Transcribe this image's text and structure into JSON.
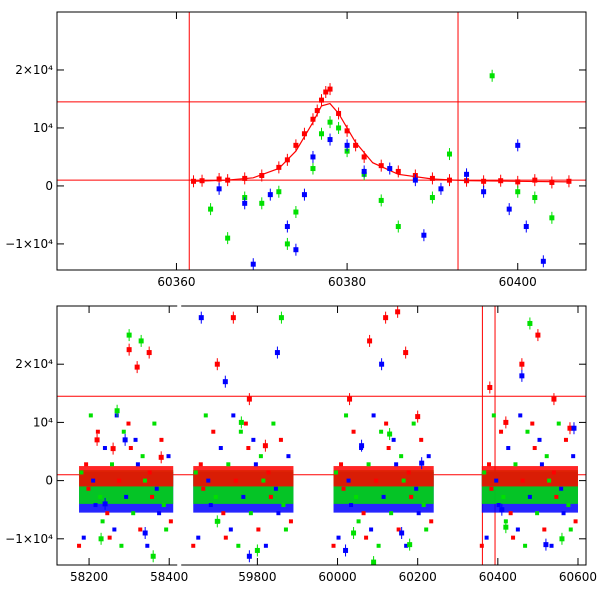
{
  "colors": {
    "red": "#ff0000",
    "green": "#00e000",
    "blue": "#0000ff",
    "axis": "#000000",
    "ref_line": "#ff0000"
  },
  "chart_data": [
    {
      "type": "scatter",
      "panel": "top",
      "xlim": [
        60346,
        60408
      ],
      "ylim": [
        -14500,
        30000
      ],
      "xticks": [
        {
          "value": 60360,
          "label": "60360"
        },
        {
          "value": 60380,
          "label": "60380"
        },
        {
          "value": 60400,
          "label": "60400"
        }
      ],
      "yticks": [
        {
          "value": -10000,
          "label": "−1×10⁴"
        },
        {
          "value": 0,
          "label": "0"
        },
        {
          "value": 10000,
          "label": "10⁴"
        },
        {
          "value": 20000,
          "label": "2×10⁴"
        }
      ],
      "hlines": [
        14500,
        1000
      ],
      "vlines": [
        60361.5,
        60393
      ],
      "fit_curve": {
        "color": "red",
        "x": [
          60362,
          60366,
          60369,
          60372,
          60374,
          60376,
          60377,
          60378,
          60379,
          60381,
          60383,
          60386,
          60390,
          60394,
          60400,
          60406
        ],
        "y": [
          800,
          1000,
          1400,
          3000,
          6000,
          11000,
          13800,
          14200,
          12500,
          7500,
          4000,
          2000,
          1200,
          900,
          800,
          700
        ]
      },
      "series": [
        {
          "color": "red",
          "x": [
            60362,
            60363,
            60365,
            60366,
            60368,
            60370,
            60372,
            60373,
            60374,
            60375,
            60376,
            60376.5,
            60377,
            60377.5,
            60378,
            60379,
            60380,
            60381,
            60382,
            60384,
            60386,
            60388,
            60390,
            60392,
            60394,
            60396,
            60398,
            60400,
            60402,
            60404,
            60406
          ],
          "y": [
            800,
            900,
            1200,
            1000,
            1300,
            1800,
            3200,
            4500,
            7000,
            9000,
            11500,
            13000,
            14800,
            16200,
            16700,
            12500,
            9500,
            7000,
            5000,
            3500,
            2500,
            1800,
            1300,
            1000,
            900,
            800,
            900,
            700,
            1000,
            600,
            800
          ]
        },
        {
          "color": "green",
          "x": [
            60364,
            60366,
            60368,
            60370,
            60372,
            60373,
            60374,
            60376,
            60377,
            60378,
            60379,
            60380,
            60382,
            60384,
            60386,
            60390,
            60392,
            60397,
            60400,
            60402,
            60404
          ],
          "y": [
            -4000,
            -9000,
            -2000,
            -3000,
            -1000,
            -10000,
            -4500,
            3000,
            9000,
            11000,
            10000,
            6000,
            2000,
            -2500,
            -7000,
            -2000,
            5500,
            19000,
            -1000,
            -2000,
            -5500
          ]
        },
        {
          "color": "blue",
          "x": [
            60365,
            60368,
            60369,
            60371,
            60373,
            60374,
            60375,
            60376,
            60378,
            60380,
            60382,
            60385,
            60388,
            60389,
            60391,
            60394,
            60396,
            60399,
            60400,
            60401,
            60403
          ],
          "y": [
            -500,
            -3000,
            -13500,
            -1500,
            -7000,
            -11000,
            -1500,
            5000,
            8000,
            7000,
            2500,
            3000,
            1000,
            -8500,
            -500,
            2000,
            -1000,
            -4000,
            7000,
            -7000,
            -13000
          ]
        }
      ]
    },
    {
      "type": "scatter",
      "panel": "bottom",
      "xlim": [
        58120,
        60620
      ],
      "x_break": {
        "from": 58420,
        "to": 59600
      },
      "ylim": [
        -14500,
        30000
      ],
      "xticks": [
        {
          "value": 58200,
          "label": "58200"
        },
        {
          "value": 58400,
          "label": "58400"
        },
        {
          "value": 59800,
          "label": "59800"
        },
        {
          "value": 60000,
          "label": "60000"
        },
        {
          "value": 60200,
          "label": "60200"
        },
        {
          "value": 60400,
          "label": "60400"
        },
        {
          "value": 60600,
          "label": "60600"
        }
      ],
      "yticks": [
        {
          "value": -10000,
          "label": "−1×10⁴"
        },
        {
          "value": 0,
          "label": "0"
        },
        {
          "value": 10000,
          "label": "10⁴"
        },
        {
          "value": 20000,
          "label": "2×10⁴"
        }
      ],
      "hlines": [
        14500,
        1000
      ],
      "vlines": [
        60361.5,
        60393
      ],
      "segments": [
        {
          "from": 58175,
          "to": 58410
        },
        {
          "from": 59640,
          "to": 59890
        },
        {
          "from": 59990,
          "to": 60240
        },
        {
          "from": 60360,
          "to": 60600
        }
      ],
      "series": [
        {
          "color": "red",
          "x": [
            58220,
            58260,
            58300,
            58320,
            58350,
            58380,
            59700,
            59740,
            59780,
            59820,
            60030,
            60080,
            60120,
            60150,
            60170,
            60200,
            60380,
            60420,
            60460,
            60500,
            60540,
            60580
          ],
          "y": [
            7000,
            5500,
            22500,
            19500,
            22000,
            4000,
            20000,
            28000,
            14000,
            6000,
            14000,
            24000,
            28000,
            29000,
            22000,
            11000,
            16000,
            10000,
            20000,
            25000,
            14000,
            9000
          ]
        },
        {
          "color": "green",
          "x": [
            58230,
            58270,
            58300,
            58330,
            58360,
            59700,
            59760,
            59800,
            59860,
            60040,
            60090,
            60130,
            60180,
            60420,
            60480,
            60560
          ],
          "y": [
            -10000,
            12000,
            25000,
            24000,
            -13000,
            -7000,
            10000,
            -12000,
            28000,
            -9000,
            -14000,
            8000,
            -11000,
            -8000,
            27000,
            -10000
          ]
        },
        {
          "color": "blue",
          "x": [
            58240,
            58290,
            58340,
            59660,
            59720,
            59780,
            59850,
            60020,
            60060,
            60110,
            60160,
            60210,
            60410,
            60460,
            60520,
            60590
          ],
          "y": [
            -4000,
            7000,
            -9000,
            28000,
            17000,
            -13000,
            22000,
            -12000,
            6000,
            20000,
            -9000,
            3000,
            -5000,
            18000,
            -11000,
            9000
          ]
        }
      ]
    }
  ]
}
